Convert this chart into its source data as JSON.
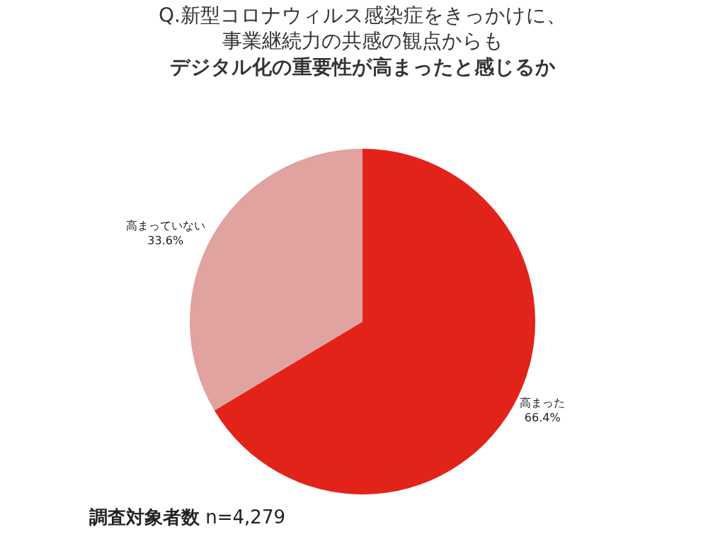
{
  "chart_data": {
    "type": "pie",
    "title": "Q.新型コロナウィルス感染症をきっかけに、事業継続力の共感の観点からも",
    "subtitle": "デジタル化の重要性が高まったと感じるか",
    "categories": [
      "高まった",
      "高まっていない"
    ],
    "values": [
      66.4,
      33.6
    ],
    "colors": [
      "#e2231a",
      "#e0a39f"
    ],
    "value_labels": [
      "66.4%",
      "33.6%"
    ],
    "legend": false,
    "annotations": [
      "調査対象者数 n=4,279"
    ]
  }
}
